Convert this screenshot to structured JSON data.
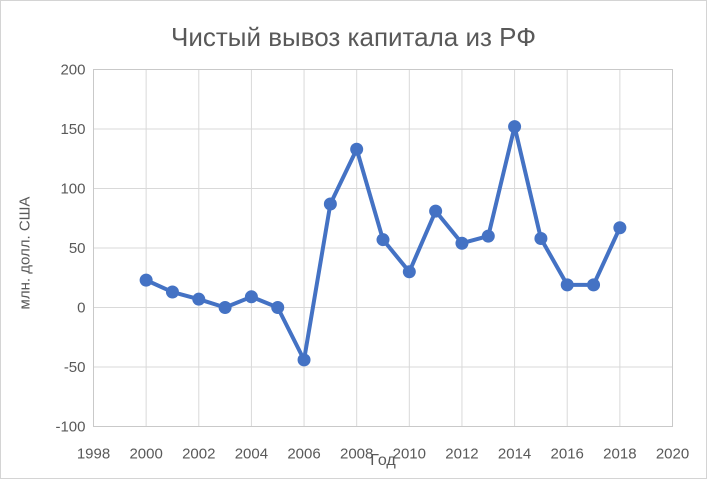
{
  "chart_data": {
    "type": "line",
    "title": "Чистый вывоз капитала из РФ",
    "xlabel": "Год",
    "ylabel": "млн. долл. США",
    "x": [
      2000,
      2001,
      2002,
      2003,
      2004,
      2005,
      2006,
      2007,
      2008,
      2009,
      2010,
      2011,
      2012,
      2013,
      2014,
      2015,
      2016,
      2017,
      2018
    ],
    "values": [
      23,
      13,
      7,
      0,
      9,
      0,
      -44,
      87,
      133,
      57,
      30,
      81,
      54,
      60,
      152,
      58,
      19,
      19,
      67
    ],
    "xlim": [
      1998,
      2020
    ],
    "ylim": [
      -100,
      200
    ],
    "x_ticks": [
      1998,
      2000,
      2002,
      2004,
      2006,
      2008,
      2010,
      2012,
      2014,
      2016,
      2018,
      2020
    ],
    "y_ticks": [
      -100,
      -50,
      0,
      50,
      100,
      150,
      200
    ],
    "grid": true,
    "legend": false,
    "marker": "circle",
    "colors": {
      "line": "#4472C4",
      "marker": "#4472C4",
      "grid": "#D9D9D9",
      "plot_border": "#C9C9C9",
      "text": "#595959"
    }
  }
}
